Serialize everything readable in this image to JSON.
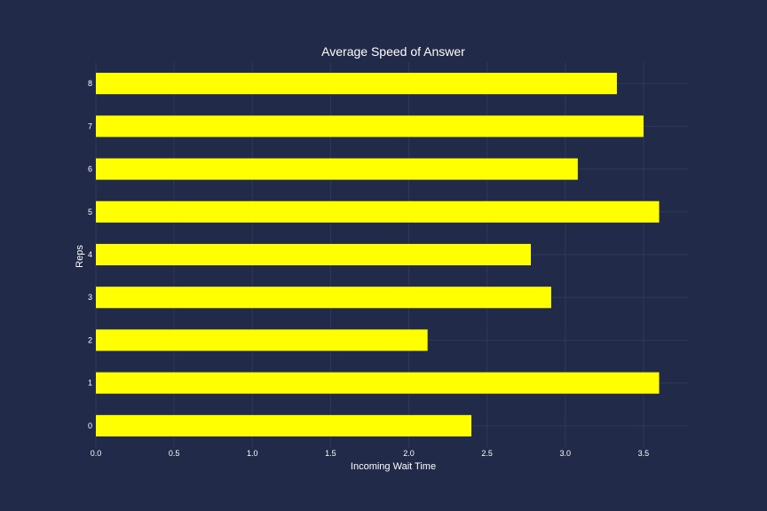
{
  "chart_data": {
    "type": "bar",
    "orientation": "horizontal",
    "title": "Average Speed of Answer",
    "xlabel": "Incoming Wait Time",
    "ylabel": "Reps",
    "categories": [
      "0",
      "1",
      "2",
      "3",
      "4",
      "5",
      "6",
      "7",
      "8"
    ],
    "values": [
      2.4,
      3.6,
      2.12,
      2.91,
      2.78,
      3.6,
      3.08,
      3.5,
      3.33
    ],
    "xlim": [
      0,
      3.79
    ],
    "xticks": [
      "0.0",
      "0.5",
      "1.0",
      "1.5",
      "2.0",
      "2.5",
      "3.0",
      "3.5"
    ],
    "grid": true,
    "colors": {
      "background": "#222a49",
      "bar": "#ffff00",
      "grid": "#2f385a",
      "text": "#ffffff"
    }
  }
}
